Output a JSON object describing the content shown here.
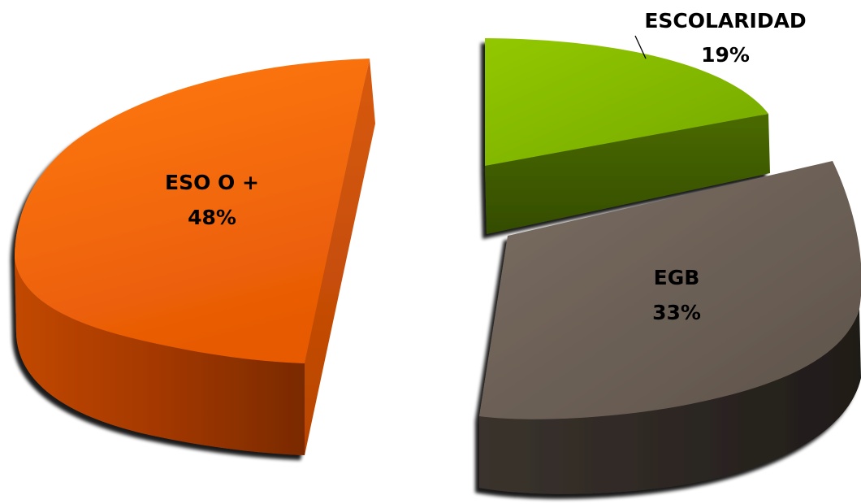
{
  "chart_data": {
    "type": "pie",
    "title": "",
    "style": "3d-exploded",
    "legend": "none",
    "slices": [
      {
        "category": "ESCOLARIDAD",
        "percent_label": "19%",
        "value": 19,
        "color_top": "#7fb300",
        "color_side": "#3f5a00"
      },
      {
        "category": "EGB",
        "percent_label": "33%",
        "value": 33,
        "color_top": "#6b5f55",
        "color_side": "#2e2824"
      },
      {
        "category": "ESO O +",
        "percent_label": "48%",
        "value": 48,
        "color_top": "#f0600a",
        "color_side": "#a83a00"
      }
    ]
  }
}
